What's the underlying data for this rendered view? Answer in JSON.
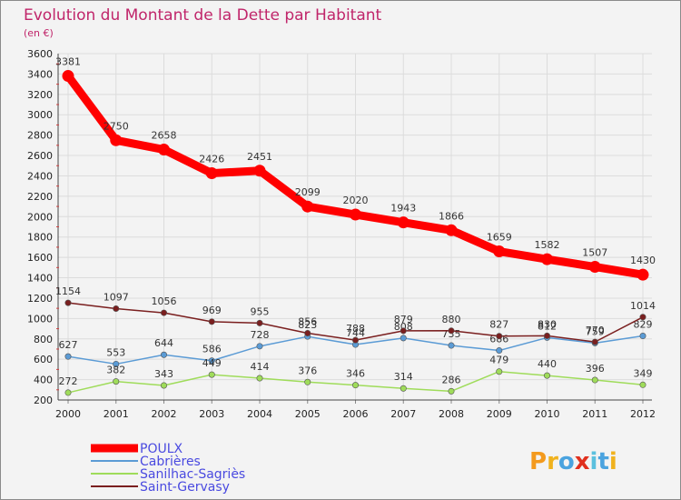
{
  "chart_data": {
    "type": "line",
    "title": "Evolution du Montant de la Dette par Habitant",
    "subtitle": "(en €)",
    "xlabel": "",
    "ylabel": "",
    "x": [
      "2000",
      "2001",
      "2002",
      "2003",
      "2004",
      "2005",
      "2006",
      "2007",
      "2008",
      "2009",
      "2010",
      "2011",
      "2012"
    ],
    "ylim": [
      200,
      3600
    ],
    "yticks": [
      200,
      400,
      600,
      800,
      1000,
      1200,
      1400,
      1600,
      1800,
      2000,
      2200,
      2400,
      2600,
      2800,
      3000,
      3200,
      3400,
      3600
    ],
    "grid": true,
    "legend_position": "bottom-left",
    "series": [
      {
        "name": "POULX",
        "color": "#ff0000",
        "values": [
          3381,
          2750,
          2658,
          2426,
          2451,
          2099,
          2020,
          1943,
          1866,
          1659,
          1582,
          1507,
          1430
        ]
      },
      {
        "name": "Cabrières",
        "color": "#5b9bd5",
        "values": [
          627,
          553,
          644,
          586,
          728,
          823,
          744,
          808,
          735,
          686,
          812,
          759,
          829
        ]
      },
      {
        "name": "Sanilhac-Sagriès",
        "color": "#9fdc5a",
        "values": [
          272,
          382,
          343,
          449,
          414,
          376,
          346,
          314,
          286,
          479,
          440,
          396,
          349
        ]
      },
      {
        "name": "Saint-Gervasy",
        "color": "#7a1f1f",
        "values": [
          1154,
          1097,
          1056,
          969,
          955,
          856,
          788,
          879,
          880,
          827,
          830,
          770,
          1014
        ]
      }
    ]
  },
  "logo": {
    "text": "Proxiti"
  }
}
